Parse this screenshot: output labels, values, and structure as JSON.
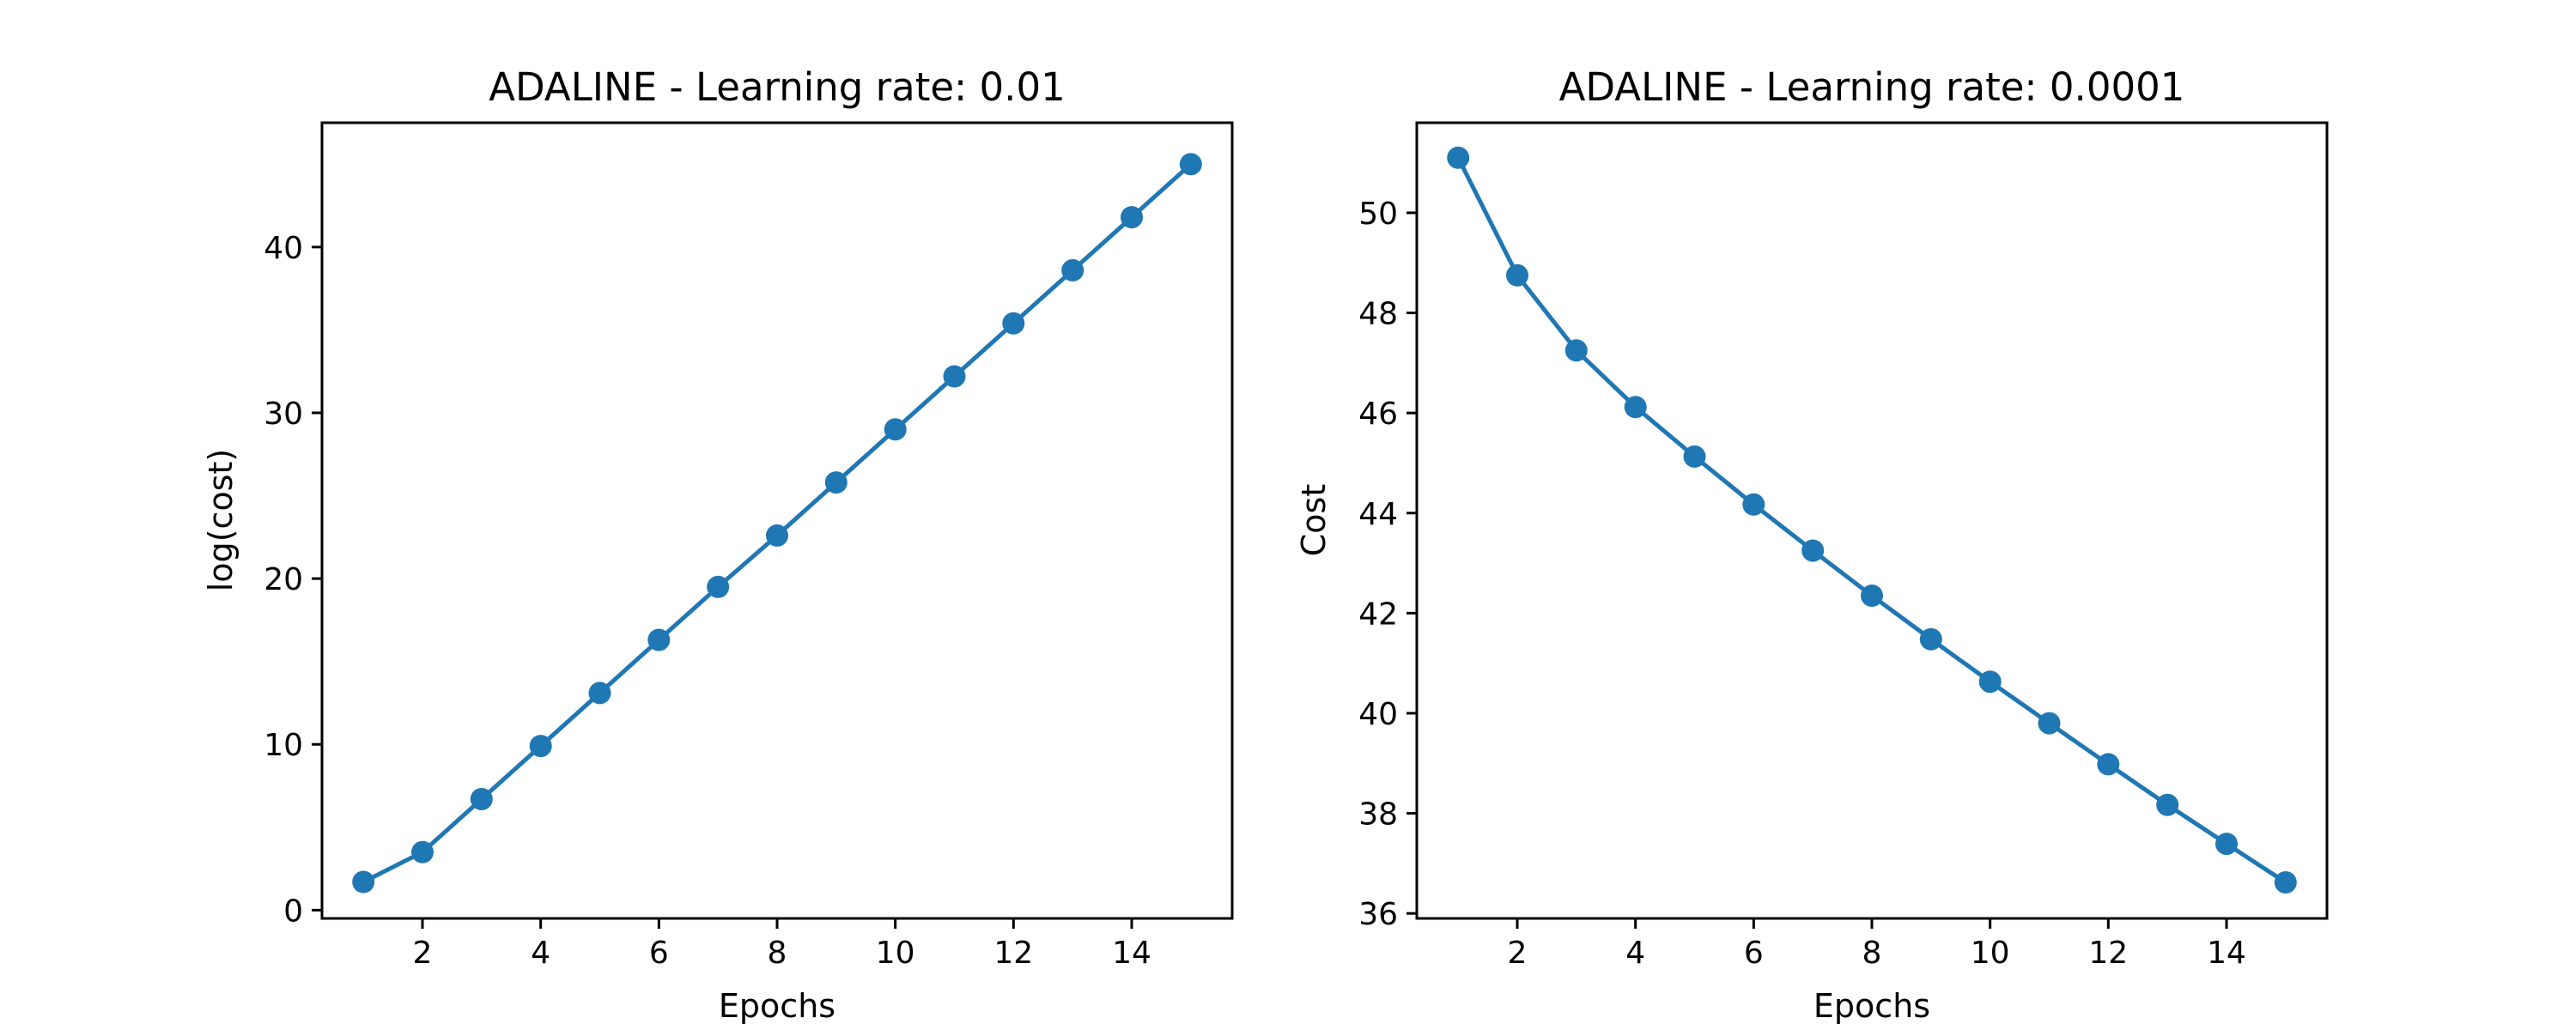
{
  "chart_data": [
    {
      "type": "line",
      "title": "ADALINE - Learning rate: 0.01",
      "xlabel": "Epochs",
      "ylabel": "log(cost)",
      "xlim": [
        0.3,
        15.7
      ],
      "ylim": [
        -0.5,
        47.5
      ],
      "xticks": [
        2,
        4,
        6,
        8,
        10,
        12,
        14
      ],
      "yticks": [
        0,
        10,
        20,
        30,
        40
      ],
      "grid": false,
      "marker": "circle",
      "series": [
        {
          "color": "#1f77b4",
          "x": [
            1,
            2,
            3,
            4,
            5,
            6,
            7,
            8,
            9,
            10,
            11,
            12,
            13,
            14,
            15
          ],
          "y": [
            1.7,
            3.5,
            6.7,
            9.9,
            13.1,
            16.3,
            19.5,
            22.6,
            25.8,
            29.0,
            32.2,
            35.4,
            38.6,
            41.8,
            45.0
          ]
        }
      ]
    },
    {
      "type": "line",
      "title": "ADALINE - Learning rate: 0.0001",
      "xlabel": "Epochs",
      "ylabel": "Cost",
      "xlim": [
        0.3,
        15.7
      ],
      "ylim": [
        35.9,
        51.8
      ],
      "xticks": [
        2,
        4,
        6,
        8,
        10,
        12,
        14
      ],
      "yticks": [
        36,
        38,
        40,
        42,
        44,
        46,
        48,
        50
      ],
      "grid": false,
      "marker": "circle",
      "series": [
        {
          "color": "#1f77b4",
          "x": [
            1,
            2,
            3,
            4,
            5,
            6,
            7,
            8,
            9,
            10,
            11,
            12,
            13,
            14,
            15
          ],
          "y": [
            51.1,
            48.75,
            47.25,
            46.12,
            45.13,
            44.17,
            43.25,
            42.35,
            41.48,
            40.63,
            39.8,
            38.98,
            38.17,
            37.39,
            36.62
          ]
        }
      ]
    }
  ]
}
